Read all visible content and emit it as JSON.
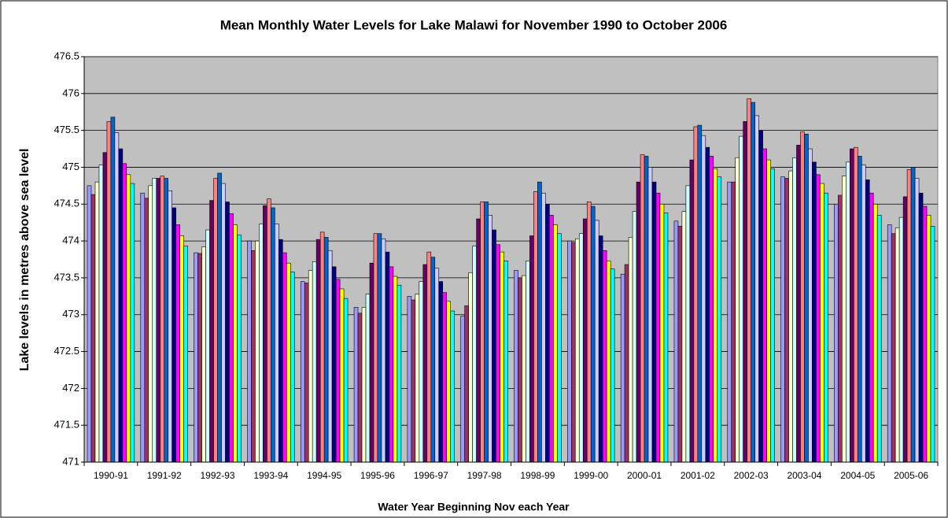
{
  "chart_data": {
    "type": "bar",
    "title": "Mean Monthly Water Levels for Lake Malawi for November 1990  to October 2006",
    "x_label": "Water Year Beginning Nov each Year",
    "y_label": "Lake levels in metres above sea level",
    "categories": [
      "1990-91",
      "1991-92",
      "1992-93",
      "1993-94",
      "1994-95",
      "1995-96",
      "1996-97",
      "1997-98",
      "1998-99",
      "1999-00",
      "2000-01",
      "2001-02",
      "2002-03",
      "2003-04",
      "2004-05",
      "2005-06"
    ],
    "ylim": [
      471,
      476.5
    ],
    "yticks": [
      471,
      471.5,
      472,
      472.5,
      473,
      473.5,
      474,
      474.5,
      475,
      475.5,
      476,
      476.5
    ],
    "grid": true,
    "plot_background": "#c0c0c0",
    "series": [
      {
        "color": "#9999ff",
        "values": [
          474.75,
          474.65,
          473.84,
          474.0,
          473.45,
          473.1,
          473.25,
          472.98,
          473.6,
          474.0,
          473.55,
          474.27,
          474.8,
          474.87,
          474.5,
          474.22
        ]
      },
      {
        "color": "#993366",
        "values": [
          474.63,
          474.58,
          473.83,
          473.87,
          473.43,
          473.02,
          473.2,
          473.12,
          473.5,
          473.98,
          473.68,
          474.2,
          474.8,
          474.85,
          474.62,
          474.1
        ]
      },
      {
        "color": "#ffffcc",
        "values": [
          474.8,
          474.75,
          473.92,
          474.0,
          473.6,
          473.1,
          473.28,
          473.57,
          473.53,
          474.03,
          474.05,
          474.4,
          475.13,
          474.95,
          474.88,
          474.18
        ]
      },
      {
        "color": "#ccffff",
        "values": [
          475.03,
          474.85,
          474.15,
          474.23,
          473.72,
          473.28,
          473.45,
          473.93,
          473.73,
          474.1,
          474.4,
          474.75,
          475.42,
          475.13,
          475.07,
          474.32
        ]
      },
      {
        "color": "#660066",
        "values": [
          475.2,
          474.85,
          474.55,
          474.48,
          474.02,
          473.7,
          473.68,
          474.3,
          474.07,
          474.3,
          474.8,
          475.1,
          475.62,
          475.3,
          475.25,
          474.6
        ]
      },
      {
        "color": "#ff8080",
        "values": [
          475.62,
          474.88,
          474.85,
          474.57,
          474.12,
          474.1,
          473.85,
          474.53,
          474.67,
          474.53,
          475.17,
          475.55,
          475.93,
          475.48,
          475.27,
          474.97
        ]
      },
      {
        "color": "#0066cc",
        "values": [
          475.68,
          474.85,
          474.92,
          474.45,
          474.05,
          474.1,
          473.78,
          474.53,
          474.8,
          474.47,
          475.15,
          475.57,
          475.88,
          475.45,
          475.15,
          475.0
        ]
      },
      {
        "color": "#ccccff",
        "values": [
          475.47,
          474.68,
          474.78,
          474.23,
          473.87,
          474.03,
          473.63,
          474.35,
          474.65,
          474.28,
          475.0,
          475.43,
          475.7,
          475.25,
          475.03,
          474.85
        ]
      },
      {
        "color": "#000080",
        "values": [
          475.25,
          474.45,
          474.53,
          474.02,
          473.65,
          473.85,
          473.45,
          474.15,
          474.5,
          474.07,
          474.8,
          475.27,
          475.5,
          475.07,
          474.83,
          474.65
        ]
      },
      {
        "color": "#ff00ff",
        "values": [
          475.05,
          474.22,
          474.37,
          473.84,
          473.48,
          473.65,
          473.3,
          473.95,
          474.35,
          473.87,
          474.65,
          475.15,
          475.25,
          474.9,
          474.65,
          474.47
        ]
      },
      {
        "color": "#ffff00",
        "values": [
          474.9,
          474.07,
          474.22,
          473.7,
          473.35,
          473.52,
          473.18,
          473.85,
          474.22,
          473.73,
          474.5,
          474.98,
          475.1,
          474.78,
          474.5,
          474.35
        ]
      },
      {
        "color": "#00ffff",
        "values": [
          474.78,
          473.93,
          474.08,
          473.58,
          473.22,
          473.4,
          473.05,
          473.73,
          474.1,
          473.62,
          474.38,
          474.87,
          474.98,
          474.65,
          474.35,
          474.2
        ]
      }
    ]
  }
}
